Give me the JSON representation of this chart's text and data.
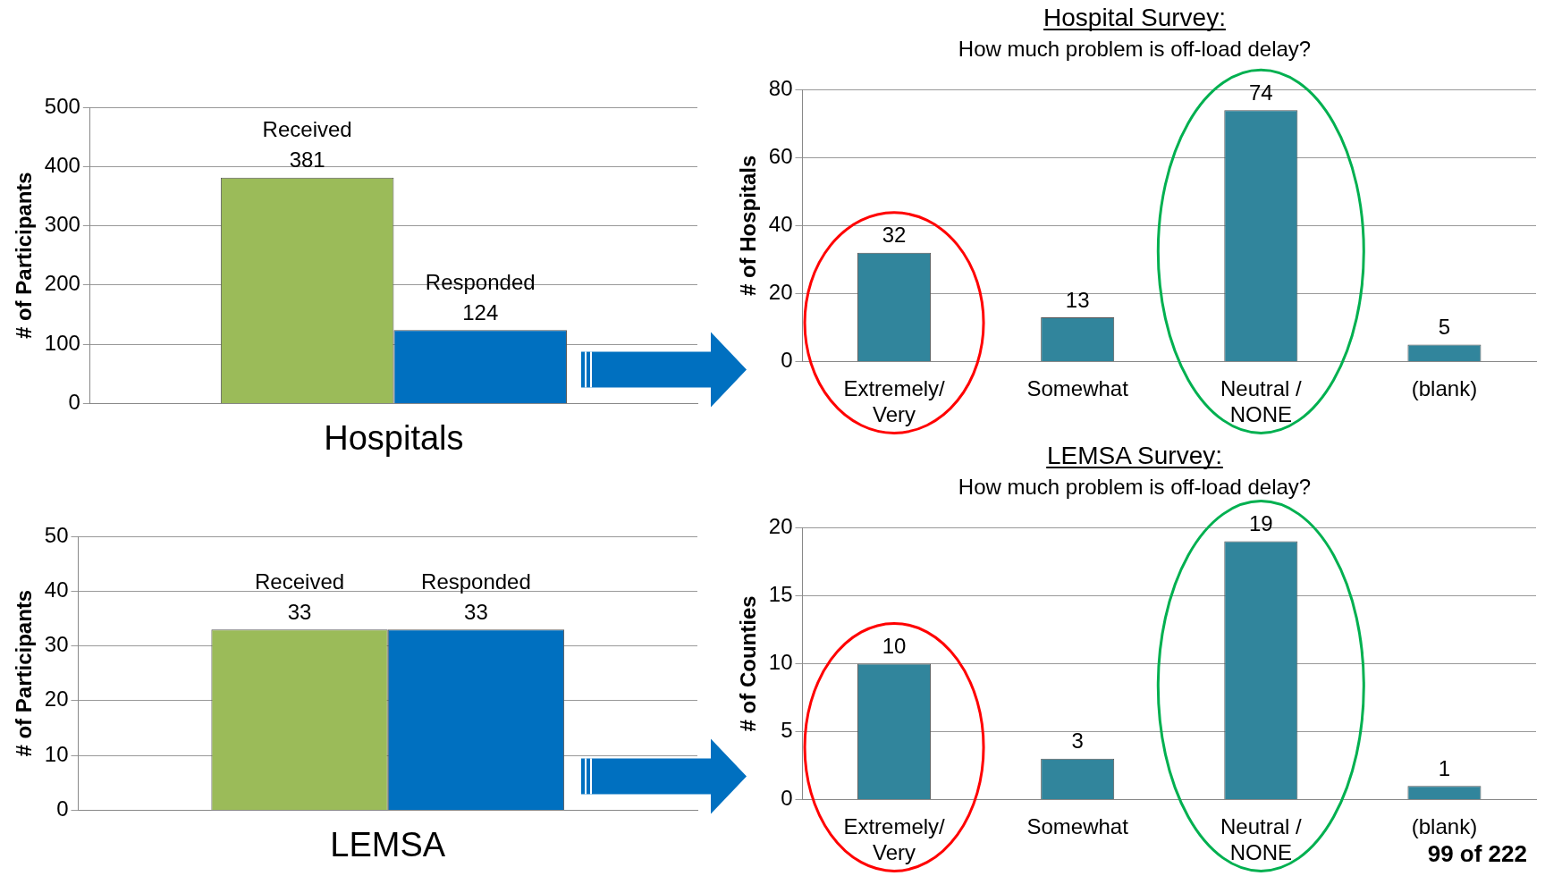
{
  "chart_data": [
    {
      "type": "bar",
      "categories": [
        "Hospitals"
      ],
      "ylabel": "# of Participants",
      "ylim": [
        0,
        500
      ],
      "yticks": [
        0,
        100,
        200,
        300,
        400,
        500
      ],
      "grid": "y",
      "legend": false,
      "data_labels": true,
      "series": [
        {
          "name": "Received",
          "color": "#9bbb59",
          "values": [
            381
          ]
        },
        {
          "name": "Responded",
          "color": "#0070c0",
          "values": [
            124
          ]
        }
      ]
    },
    {
      "type": "bar",
      "title": "Hospital Survey:",
      "subtitle": "How much problem is off-load delay?",
      "categories": [
        "Extremely/ Very",
        "Somewhat",
        "Neutral / NONE",
        "(blank)"
      ],
      "values": [
        32,
        13,
        74,
        5
      ],
      "color": "#31859c",
      "ylabel": "# of Hospitals",
      "ylim": [
        0,
        80
      ],
      "yticks": [
        0,
        20,
        40,
        60,
        80
      ],
      "grid": "y",
      "legend": false,
      "data_labels": true
    },
    {
      "type": "bar",
      "categories": [
        "LEMSA"
      ],
      "ylabel": "# of Participants",
      "ylim": [
        0,
        50
      ],
      "yticks": [
        0,
        10,
        20,
        30,
        40,
        50
      ],
      "grid": "y",
      "legend": false,
      "data_labels": true,
      "series": [
        {
          "name": "Received",
          "color": "#9bbb59",
          "values": [
            33
          ]
        },
        {
          "name": "Responded",
          "color": "#0070c0",
          "values": [
            33
          ]
        }
      ]
    },
    {
      "type": "bar",
      "title": "LEMSA Survey:",
      "subtitle": "How much problem is off-load delay?",
      "categories": [
        "Extremely/ Very",
        "Somewhat",
        "Neutral / NONE",
        "(blank)"
      ],
      "values": [
        10,
        3,
        19,
        1
      ],
      "color": "#31859c",
      "ylabel": "# of Counties",
      "ylim": [
        0,
        20
      ],
      "yticks": [
        0,
        5,
        10,
        15,
        20
      ],
      "grid": "y",
      "legend": false,
      "data_labels": true,
      "annotations": [
        "99 of 222"
      ]
    }
  ]
}
